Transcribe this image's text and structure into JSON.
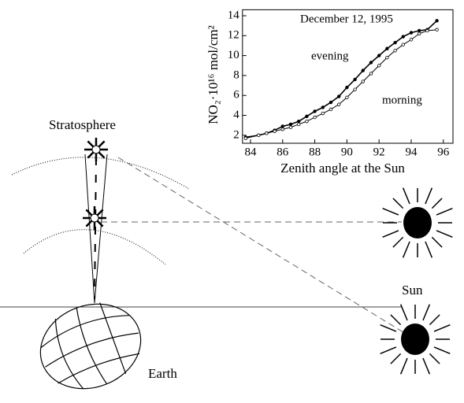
{
  "labels": {
    "stratosphere": "Stratosphere",
    "sun": "Sun",
    "earth": "Earth"
  },
  "chart_data": {
    "type": "line",
    "title": "December 12, 1995",
    "xlabel": "Zenith angle at the Sun",
    "ylabel": "NO₂·10¹⁶ mol/cm²",
    "annotations": [
      "evening",
      "morning"
    ],
    "xlim": [
      83.5,
      96.6
    ],
    "ylim": [
      1.2,
      14.6
    ],
    "xticks": [
      84,
      86,
      88,
      90,
      92,
      94,
      96
    ],
    "yticks": [
      2,
      4,
      6,
      8,
      10,
      12,
      14
    ],
    "series": [
      {
        "name": "evening",
        "color": "#000",
        "marker": "filled",
        "x": [
          83.7,
          84.5,
          85,
          85.5,
          86,
          86.5,
          87,
          87.5,
          88,
          88.5,
          89,
          89.5,
          90,
          90.5,
          91,
          91.5,
          92,
          92.5,
          93,
          93.5,
          94,
          94.5,
          95,
          95.6
        ],
        "values": [
          1.8,
          2,
          2.2,
          2.5,
          2.9,
          3.1,
          3.4,
          3.9,
          4.4,
          4.8,
          5.3,
          5.9,
          6.8,
          7.6,
          8.5,
          9.3,
          10,
          10.7,
          11.3,
          11.9,
          12.3,
          12.5,
          12.6,
          13.5
        ]
      },
      {
        "name": "morning",
        "color": "#000",
        "marker": "open",
        "x": [
          83.7,
          84.5,
          85,
          85.5,
          86,
          86.5,
          87,
          87.5,
          88,
          88.5,
          89,
          89.5,
          90,
          90.5,
          91,
          91.5,
          92,
          92.5,
          93,
          93.5,
          94,
          94.5,
          95,
          95.6
        ],
        "values": [
          1.7,
          2,
          2.2,
          2.4,
          2.6,
          2.8,
          3.1,
          3.4,
          3.8,
          4.2,
          4.6,
          5.1,
          5.8,
          6.6,
          7.4,
          8.2,
          9,
          9.8,
          10.5,
          11.1,
          11.6,
          12.2,
          12.5,
          12.6
        ]
      }
    ]
  }
}
